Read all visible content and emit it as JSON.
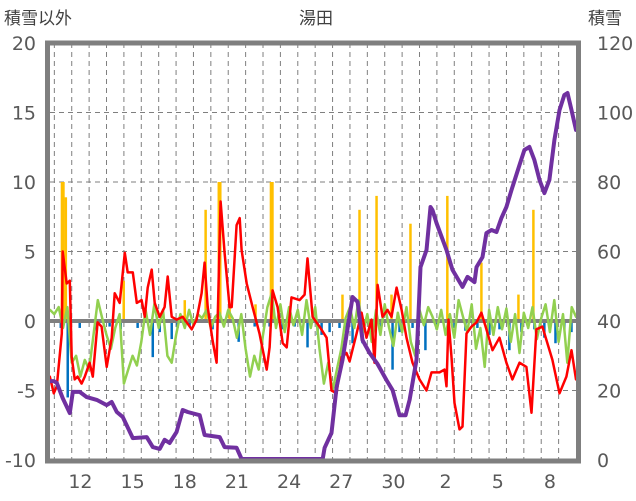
{
  "chart_data": {
    "type": "line",
    "title": "湯田",
    "ylabel_left": "積雪以外",
    "ylabel_right": "積雪",
    "ylim_left": [
      -10,
      20
    ],
    "ylim_right": [
      0,
      120
    ],
    "yticks_left": [
      "20",
      "15",
      "10",
      "5",
      "0",
      "-5",
      "-10"
    ],
    "yticks_left_values": [
      20,
      15,
      10,
      5,
      0,
      -5,
      -10
    ],
    "yticks_right": [
      "120",
      "100",
      "80",
      "60",
      "40",
      "20",
      "0"
    ],
    "yticks_right_values": [
      120,
      100,
      80,
      60,
      40,
      20,
      0
    ],
    "x_note": "continuous day index; day 32 = 1st of next month",
    "xlim": [
      10.75,
      41.0
    ],
    "xticks": [
      "12",
      "15",
      "18",
      "21",
      "24",
      "27",
      "30",
      "2",
      "5",
      "8"
    ],
    "xticks_values": [
      12.5,
      15.5,
      18.5,
      21.5,
      24.5,
      27.5,
      30.5,
      33.5,
      36.5,
      39.5
    ],
    "grid": true,
    "colors": {
      "red": "#ff0000",
      "green": "#92d050",
      "purple": "#7030a0",
      "yellow": "#ffc000",
      "blue": "#0070c0",
      "frame": "#7f7f7f"
    },
    "series": [
      {
        "name": "red",
        "axis": "left",
        "points": [
          [
            10.74,
            -4.0
          ],
          [
            10.97,
            -5.2
          ],
          [
            11.14,
            -4.7
          ],
          [
            11.43,
            -0.9
          ],
          [
            11.48,
            5.0
          ],
          [
            11.71,
            2.7
          ],
          [
            11.89,
            2.9
          ],
          [
            12.0,
            -2.6
          ],
          [
            12.17,
            -4.2
          ],
          [
            12.34,
            -4.0
          ],
          [
            12.57,
            -4.5
          ],
          [
            12.75,
            -4.0
          ],
          [
            13.03,
            -3.0
          ],
          [
            13.21,
            -4.0
          ],
          [
            13.49,
            -0.1
          ],
          [
            13.72,
            -0.4
          ],
          [
            14.01,
            -3.3
          ],
          [
            14.3,
            -1.2
          ],
          [
            14.47,
            2.0
          ],
          [
            14.76,
            1.3
          ],
          [
            15.05,
            4.9
          ],
          [
            15.22,
            3.5
          ],
          [
            15.51,
            3.5
          ],
          [
            15.74,
            1.3
          ],
          [
            16.02,
            1.5
          ],
          [
            16.2,
            0.3
          ],
          [
            16.37,
            2.4
          ],
          [
            16.6,
            3.7
          ],
          [
            16.77,
            1.3
          ],
          [
            17.06,
            0.3
          ],
          [
            17.34,
            1.0
          ],
          [
            17.52,
            3.2
          ],
          [
            17.75,
            0.3
          ],
          [
            18.03,
            0.1
          ],
          [
            18.38,
            0.3
          ],
          [
            18.9,
            -0.6
          ],
          [
            19.18,
            0.1
          ],
          [
            19.47,
            2.0
          ],
          [
            19.64,
            4.2
          ],
          [
            19.82,
            1.0
          ],
          [
            20.1,
            -1.4
          ],
          [
            20.33,
            -3.0
          ],
          [
            20.56,
            8.6
          ],
          [
            20.79,
            4.9
          ],
          [
            21.08,
            1.0
          ],
          [
            21.2,
            1.0
          ],
          [
            21.48,
            6.9
          ],
          [
            21.66,
            7.4
          ],
          [
            21.77,
            5.1
          ],
          [
            22.06,
            2.7
          ],
          [
            22.4,
            1.0
          ],
          [
            22.8,
            -0.9
          ],
          [
            23.21,
            -3.5
          ],
          [
            23.38,
            -1.9
          ],
          [
            23.55,
            2.2
          ],
          [
            23.84,
            1.0
          ],
          [
            24.13,
            -1.6
          ],
          [
            24.36,
            -1.9
          ],
          [
            24.64,
            1.7
          ],
          [
            25.1,
            1.5
          ],
          [
            25.39,
            1.9
          ],
          [
            25.56,
            4.5
          ],
          [
            25.85,
            0.3
          ],
          [
            26.25,
            -0.4
          ],
          [
            26.66,
            -1.2
          ],
          [
            26.94,
            -5.0
          ],
          [
            27.23,
            -5.2
          ],
          [
            27.52,
            -2.6
          ],
          [
            27.8,
            -2.3
          ],
          [
            27.98,
            -2.9
          ],
          [
            28.38,
            -0.9
          ],
          [
            28.67,
            0.6
          ],
          [
            28.95,
            -1.2
          ],
          [
            29.24,
            0.1
          ],
          [
            29.41,
            -3.0
          ],
          [
            29.59,
            2.6
          ],
          [
            29.87,
            0.3
          ],
          [
            30.16,
            0.8
          ],
          [
            30.39,
            0.3
          ],
          [
            30.68,
            2.4
          ],
          [
            30.97,
            0.8
          ],
          [
            31.25,
            -1.2
          ],
          [
            31.6,
            -3.0
          ],
          [
            32.0,
            -4.2
          ],
          [
            32.4,
            -5.0
          ],
          [
            32.69,
            -3.7
          ],
          [
            33.15,
            -3.7
          ],
          [
            33.44,
            -3.5
          ],
          [
            33.55,
            -4.7
          ],
          [
            33.67,
            0.1
          ],
          [
            33.84,
            -2.6
          ],
          [
            34.01,
            -5.9
          ],
          [
            34.3,
            -7.8
          ],
          [
            34.47,
            -7.6
          ],
          [
            34.7,
            -0.9
          ],
          [
            34.99,
            -0.4
          ],
          [
            35.28,
            -0.1
          ],
          [
            35.56,
            0.6
          ],
          [
            35.85,
            -0.6
          ],
          [
            36.2,
            -2.1
          ],
          [
            36.6,
            -1.2
          ],
          [
            37.0,
            -3.0
          ],
          [
            37.34,
            -4.2
          ],
          [
            37.75,
            -3.0
          ],
          [
            38.15,
            -3.3
          ],
          [
            38.44,
            -6.6
          ],
          [
            38.72,
            -0.6
          ],
          [
            39.07,
            -0.4
          ],
          [
            39.64,
            -2.8
          ],
          [
            40.05,
            -5.2
          ],
          [
            40.45,
            -4.0
          ],
          [
            40.74,
            -2.1
          ],
          [
            41.0,
            -4.2
          ]
        ]
      },
      {
        "name": "green",
        "axis": "left",
        "x_start": 10.75,
        "x_step": 0.25,
        "values": [
          0.8,
          0.5,
          1.0,
          -0.5,
          1.0,
          -3.0,
          -2.5,
          -4.0,
          -2.8,
          -3.5,
          -1.0,
          1.5,
          0.2,
          -1.0,
          -2.0,
          -0.5,
          0.5,
          -4.5,
          -3.5,
          -2.5,
          -3.2,
          -1.5,
          0.8,
          -1.0,
          1.2,
          -0.5,
          0.8,
          -2.5,
          -3.0,
          -1.0,
          0.5,
          -0.5,
          0.8,
          -0.3,
          0.5,
          0.2,
          0.8,
          -0.5,
          0.3,
          0.6,
          -0.4,
          0.8,
          0.2,
          -1.2,
          0.5,
          -2.0,
          -4.0,
          -2.5,
          -3.5,
          -1.0,
          1.0,
          2.0,
          -0.5,
          1.2,
          -0.8,
          1.0,
          -0.3,
          0.8,
          -1.0,
          1.5,
          -0.5,
          1.0,
          -2.0,
          -4.5,
          -3.0,
          -5.0,
          -3.5,
          -2.0,
          0.2,
          1.0,
          -0.5,
          1.5,
          -0.8,
          0.5,
          -1.5,
          0.8,
          -1.0,
          1.2,
          -0.5,
          -1.8,
          0.6,
          -0.8,
          1.0,
          -1.5,
          -2.5,
          0.8,
          -0.3,
          1.0,
          0.3,
          -0.6,
          0.8,
          -1.0,
          0.5,
          -1.2,
          1.5,
          0.3,
          -0.8,
          1.2,
          -2.0,
          -0.5,
          -3.3,
          0.8,
          -1.0,
          1.0,
          -0.6,
          0.9,
          -1.5,
          0.5,
          -2.3,
          0.6,
          -0.5,
          1.0,
          -1.3,
          0.2,
          1.2,
          -0.8,
          1.5,
          -1.5,
          0.5,
          -3.0,
          1.0,
          0.3
        ]
      },
      {
        "name": "purple",
        "axis": "right",
        "points": [
          [
            10.74,
            22.7
          ],
          [
            10.97,
            22.7
          ],
          [
            11.14,
            22.2
          ],
          [
            11.48,
            17.8
          ],
          [
            11.89,
            13.5
          ],
          [
            12.06,
            19.6
          ],
          [
            12.46,
            19.6
          ],
          [
            12.86,
            18.1
          ],
          [
            13.44,
            17.3
          ],
          [
            14.01,
            15.8
          ],
          [
            14.3,
            16.7
          ],
          [
            14.59,
            13.8
          ],
          [
            14.93,
            12.4
          ],
          [
            15.51,
            6.3
          ],
          [
            16.31,
            6.6
          ],
          [
            16.66,
            3.7
          ],
          [
            17.06,
            3.2
          ],
          [
            17.34,
            5.8
          ],
          [
            17.63,
            4.9
          ],
          [
            18.03,
            8.1
          ],
          [
            18.38,
            14.4
          ],
          [
            18.67,
            13.8
          ],
          [
            19.36,
            12.9
          ],
          [
            19.64,
            7.2
          ],
          [
            20.51,
            6.6
          ],
          [
            20.79,
            3.7
          ],
          [
            21.48,
            3.5
          ],
          [
            21.77,
            0.3
          ],
          [
            26.43,
            0.3
          ],
          [
            26.54,
            3.5
          ],
          [
            26.94,
            7.8
          ],
          [
            27.23,
            21
          ],
          [
            27.57,
            28.8
          ],
          [
            28.15,
            46.9
          ],
          [
            28.44,
            45.5
          ],
          [
            28.72,
            34.5
          ],
          [
            29.13,
            30.8
          ],
          [
            29.59,
            27.6
          ],
          [
            30.1,
            23
          ],
          [
            30.45,
            20.1
          ],
          [
            30.85,
            12.9
          ],
          [
            31.2,
            12.9
          ],
          [
            31.43,
            17.3
          ],
          [
            31.83,
            28.8
          ],
          [
            32.06,
            55.5
          ],
          [
            32.4,
            60.4
          ],
          [
            32.63,
            72.8
          ],
          [
            32.75,
            71.9
          ],
          [
            32.98,
            68.2
          ],
          [
            33.55,
            60.4
          ],
          [
            33.9,
            54.7
          ],
          [
            34.47,
            49.8
          ],
          [
            34.76,
            52.7
          ],
          [
            35.16,
            51.2
          ],
          [
            35.28,
            55.5
          ],
          [
            35.62,
            58.4
          ],
          [
            35.85,
            65.3
          ],
          [
            36.14,
            66.2
          ],
          [
            36.43,
            65.6
          ],
          [
            36.71,
            69.6
          ],
          [
            37.0,
            72.8
          ],
          [
            37.29,
            77.7
          ],
          [
            37.75,
            84.9
          ],
          [
            38.03,
            89.2
          ],
          [
            38.32,
            90.1
          ],
          [
            38.61,
            86.3
          ],
          [
            38.9,
            80.6
          ],
          [
            39.18,
            76.8
          ],
          [
            39.47,
            80.6
          ],
          [
            39.76,
            92.1
          ],
          [
            40.05,
            100.7
          ],
          [
            40.33,
            105
          ],
          [
            40.51,
            105.6
          ],
          [
            40.74,
            100.7
          ],
          [
            41.0,
            95
          ]
        ]
      },
      {
        "name": "yellow",
        "type": "bar",
        "axis": "left",
        "points": [
          [
            11.48,
            10
          ],
          [
            11.66,
            8.9
          ],
          [
            14.99,
            2.9
          ],
          [
            18.5,
            1.5
          ],
          [
            19.7,
            8.0
          ],
          [
            20.5,
            10
          ],
          [
            21.08,
            1.0
          ],
          [
            22.57,
            1.2
          ],
          [
            23.5,
            10
          ],
          [
            27.57,
            1.9
          ],
          [
            28.55,
            8.0
          ],
          [
            29.53,
            9.0
          ],
          [
            30.39,
            1.9
          ],
          [
            31.48,
            7.0
          ],
          [
            33.6,
            9.0
          ],
          [
            35.56,
            4.2
          ],
          [
            37.69,
            1.9
          ],
          [
            38.55,
            8.0
          ]
        ]
      },
      {
        "name": "blue",
        "type": "bar",
        "axis": "left",
        "points": [
          [
            11.37,
            -0.5
          ],
          [
            11.77,
            -5.5
          ],
          [
            11.94,
            -1.5
          ],
          [
            12.46,
            -0.5
          ],
          [
            13.44,
            -0.7
          ],
          [
            14.18,
            -0.4
          ],
          [
            14.82,
            -0.6
          ],
          [
            15.79,
            -0.5
          ],
          [
            16.66,
            -2.6
          ],
          [
            17.06,
            -0.8
          ],
          [
            17.75,
            -1.3
          ],
          [
            18.09,
            -0.5
          ],
          [
            18.78,
            -0.4
          ],
          [
            20.1,
            -0.6
          ],
          [
            21.6,
            -1.5
          ],
          [
            22.52,
            -0.4
          ],
          [
            23.38,
            -0.4
          ],
          [
            24.13,
            -0.6
          ],
          [
            24.82,
            -0.4
          ],
          [
            25.56,
            -1.9
          ],
          [
            26.14,
            -1.0
          ],
          [
            26.37,
            -1.0
          ],
          [
            26.83,
            -0.8
          ],
          [
            27.4,
            -0.5
          ],
          [
            27.8,
            -0.8
          ],
          [
            28.15,
            -1.6
          ],
          [
            28.72,
            -1.6
          ],
          [
            29.24,
            -0.8
          ],
          [
            29.7,
            -0.6
          ],
          [
            30.45,
            -3.5
          ],
          [
            30.85,
            -0.8
          ],
          [
            31.6,
            -0.5
          ],
          [
            32.34,
            -2.1
          ],
          [
            32.98,
            -0.6
          ],
          [
            34.01,
            -0.5
          ],
          [
            34.64,
            -0.7
          ],
          [
            35.33,
            -0.5
          ],
          [
            36.02,
            -1.0
          ],
          [
            36.6,
            -0.6
          ],
          [
            37.17,
            -2.1
          ],
          [
            37.86,
            -0.8
          ],
          [
            38.61,
            -0.6
          ],
          [
            39.18,
            -1.2
          ],
          [
            39.82,
            -1.6
          ],
          [
            40.33,
            -0.6
          ],
          [
            40.74,
            -0.8
          ]
        ]
      }
    ]
  }
}
